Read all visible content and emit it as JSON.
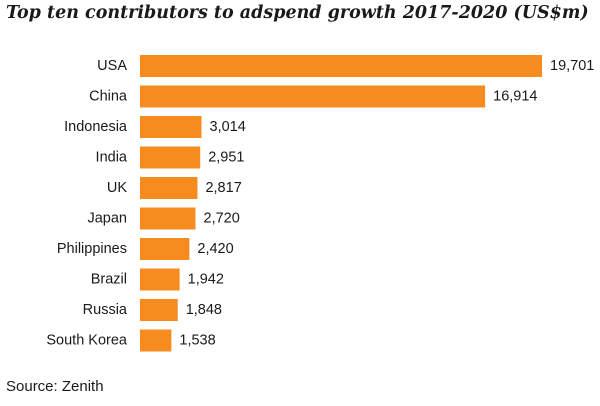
{
  "title": "Top ten contributors to adspend growth 2017-2020 (US$m)",
  "source": "Source: Zenith",
  "colors": {
    "bar": "#f68b1f",
    "text": "#1a1a1a"
  },
  "chart_data": {
    "type": "bar",
    "orientation": "horizontal",
    "title": "Top ten contributors to adspend growth 2017-2020 (US$m)",
    "xlabel": "",
    "ylabel": "",
    "grid": false,
    "xlim": [
      0,
      19701
    ],
    "categories": [
      "USA",
      "China",
      "Indonesia",
      "India",
      "UK",
      "Japan",
      "Philippines",
      "Brazil",
      "Russia",
      "South Korea"
    ],
    "values": [
      19701,
      16914,
      3014,
      2951,
      2817,
      2720,
      2420,
      1942,
      1848,
      1538
    ],
    "value_labels": [
      "19,701",
      "16,914",
      "3,014",
      "2,951",
      "2,817",
      "2,720",
      "2,420",
      "1,942",
      "1,848",
      "1,538"
    ]
  }
}
